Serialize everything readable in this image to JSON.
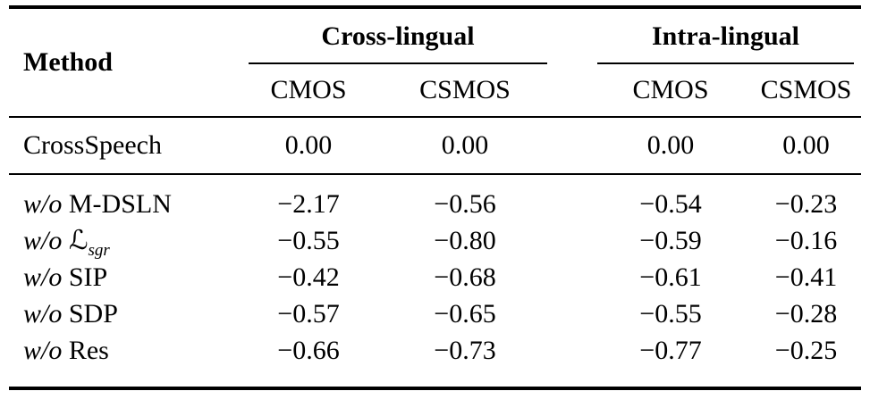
{
  "table": {
    "header": {
      "method_label": "Method",
      "group1": "Cross-lingual",
      "group2": "Intra-lingual",
      "subcols": [
        "CMOS",
        "CSMOS",
        "CMOS",
        "CSMOS"
      ]
    },
    "baseline_row": {
      "name": "CrossSpeech",
      "values": [
        "0.00",
        "0.00",
        "0.00",
        "0.00"
      ]
    },
    "ablation_rows": [
      {
        "prefix": "w/o",
        "name": "M-DSLN",
        "values": [
          "−2.17",
          "−0.56",
          "−0.54",
          "−0.23"
        ]
      },
      {
        "prefix": "w/o",
        "name_script": "ℒ",
        "name_subscript": "sgr",
        "values": [
          "−0.55",
          "−0.80",
          "−0.59",
          "−0.16"
        ]
      },
      {
        "prefix": "w/o",
        "name": "SIP",
        "values": [
          "−0.42",
          "−0.68",
          "−0.61",
          "−0.41"
        ]
      },
      {
        "prefix": "w/o",
        "name": "SDP",
        "values": [
          "−0.57",
          "−0.65",
          "−0.55",
          "−0.28"
        ]
      },
      {
        "prefix": "w/o",
        "name": "Res",
        "values": [
          "−0.66",
          "−0.73",
          "−0.77",
          "−0.25"
        ]
      }
    ],
    "colors": {
      "text": "#000000",
      "background": "#ffffff",
      "rule": "#000000"
    }
  }
}
